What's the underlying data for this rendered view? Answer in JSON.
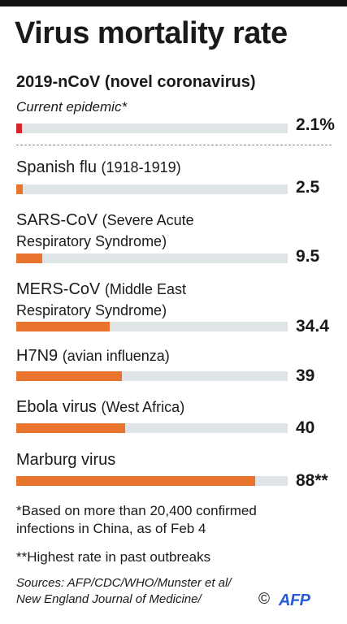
{
  "title": "Virus mortality rate",
  "chart_data": {
    "type": "bar",
    "title": "Virus mortality rate",
    "xlim": [
      0,
      100
    ],
    "series": [
      {
        "name": "2019-nCoV (novel coronavirus)",
        "note": "Current epidemic*",
        "value": 2.1,
        "label": "2.1%",
        "color": "#d7262b"
      },
      {
        "name": "Spanish flu",
        "sub": "(1918-1919)",
        "value": 2.5,
        "label": "2.5",
        "color": "#e8742d"
      },
      {
        "name": "SARS-CoV",
        "sub": "(Severe Acute",
        "line2": "Respiratory Syndrome)",
        "value": 9.5,
        "label": "9.5",
        "color": "#e8742d"
      },
      {
        "name": "MERS-CoV",
        "sub": "(Middle East",
        "line2": "Respiratory Syndrome)",
        "value": 34.4,
        "label": "34.4",
        "color": "#e8742d"
      },
      {
        "name": "H7N9",
        "sub": "(avian influenza)",
        "value": 39,
        "label": "39",
        "color": "#e8742d"
      },
      {
        "name": "Ebola virus",
        "sub": "(West Africa)",
        "value": 40,
        "label": "40",
        "color": "#e8742d"
      },
      {
        "name": "Marburg virus",
        "value": 88,
        "label": "88**",
        "color": "#e8742d"
      }
    ]
  },
  "footnotes": {
    "line1": "*Based on more than 20,400 confirmed",
    "line2": "infections in China, as of Feb 4",
    "highest": "**Highest rate in past outbreaks"
  },
  "sources": {
    "line1": "Sources: AFP/CDC/WHO/Munster et al/",
    "line2": "New England Journal of Medicine/"
  },
  "credit": {
    "copyright": "©",
    "logo": "AFP"
  }
}
